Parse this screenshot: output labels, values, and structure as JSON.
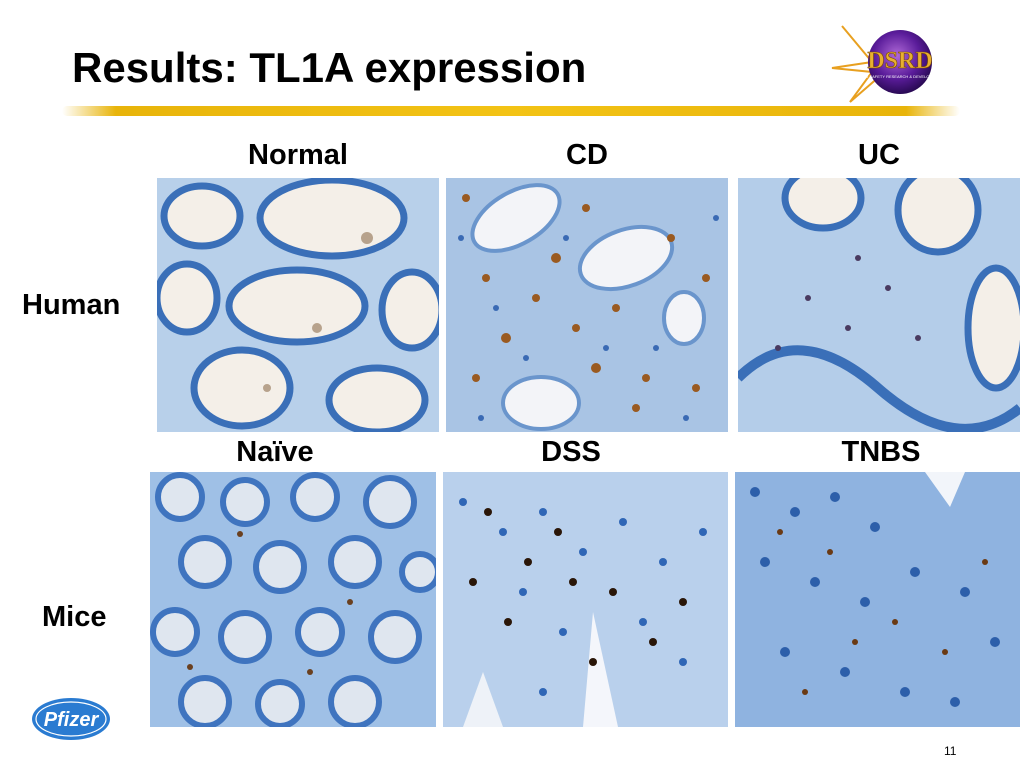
{
  "slide": {
    "title": "Results: TL1A expression",
    "page_number": "11"
  },
  "logos": {
    "dsrd": "DSRD",
    "dsrd_tagline": "DRUG SAFETY RESEARCH & DEVELOPMENT",
    "pfizer": "Pfizer"
  },
  "colors": {
    "title_rule": "#f3c315",
    "tissue_blue": "#4a86c8",
    "stain_brown": "#8a4a18"
  },
  "grid": {
    "rows": [
      {
        "label": "Human",
        "columns": [
          {
            "label": "Normal",
            "image": "histology-human-normal"
          },
          {
            "label": "CD",
            "image": "histology-human-cd"
          },
          {
            "label": "UC",
            "image": "histology-human-uc"
          }
        ]
      },
      {
        "label": "Mice",
        "columns": [
          {
            "label": "Naïve",
            "image": "histology-mice-naive"
          },
          {
            "label": "DSS",
            "image": "histology-mice-dss"
          },
          {
            "label": "TNBS",
            "image": "histology-mice-tnbs"
          }
        ]
      }
    ]
  }
}
